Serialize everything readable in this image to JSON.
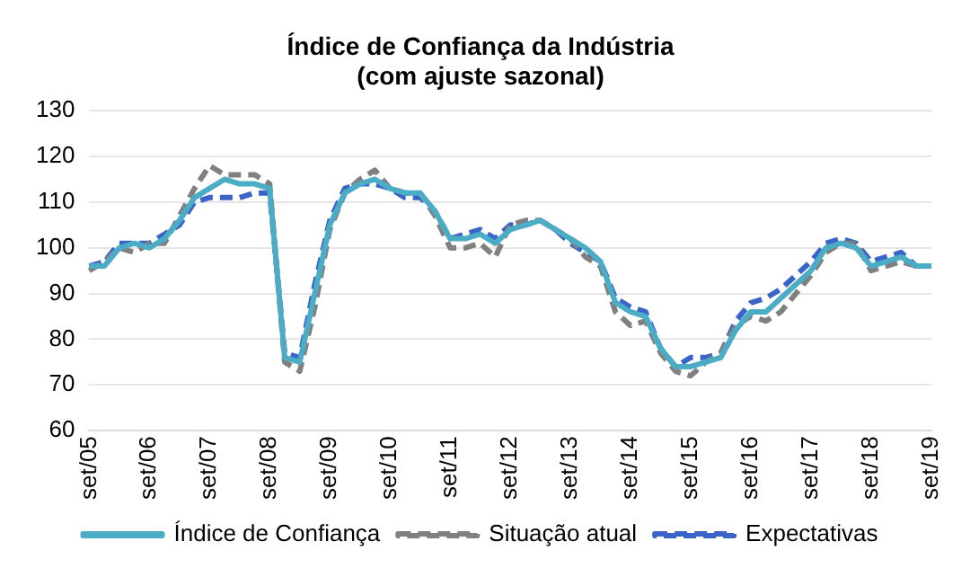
{
  "chart_data": {
    "type": "line",
    "title": "Índice de Confiança da Indústria\n(com ajuste sazonal)",
    "categories": [
      "set/05",
      null,
      null,
      null,
      "set/06",
      null,
      null,
      null,
      "set/07",
      null,
      null,
      null,
      "set/08",
      null,
      null,
      null,
      "set/09",
      null,
      null,
      null,
      "set/10",
      null,
      null,
      null,
      "set/11",
      null,
      null,
      null,
      "set/12",
      null,
      null,
      null,
      "set/13",
      null,
      null,
      null,
      "set/14",
      null,
      null,
      null,
      "set/15",
      null,
      null,
      null,
      "set/16",
      null,
      null,
      null,
      "set/17",
      null,
      null,
      null,
      "set/18",
      null,
      null,
      null,
      "set/19"
    ],
    "series": [
      {
        "name": "Índice de Confiança",
        "color": "#4bacc6",
        "line_style": "solid",
        "values": [
          96,
          96,
          100,
          101,
          100,
          102,
          106,
          111,
          113,
          115,
          114,
          114,
          113,
          76,
          75,
          90,
          105,
          112,
          114,
          115,
          113,
          112,
          112,
          108,
          102,
          102,
          103,
          101,
          104,
          105,
          106,
          104,
          102,
          100,
          97,
          88,
          86,
          85,
          78,
          74,
          74,
          75,
          76,
          82,
          86,
          86,
          89,
          92,
          95,
          100,
          101,
          100,
          96,
          97,
          98,
          96,
          96
        ]
      },
      {
        "name": "Situação atual",
        "color": "#808080",
        "line_style": "dashed",
        "values": [
          95,
          97,
          100,
          99,
          101,
          101,
          107,
          113,
          118,
          116,
          116,
          116,
          114,
          75,
          73,
          87,
          104,
          112,
          115,
          117,
          113,
          112,
          112,
          107,
          100,
          100,
          101,
          98,
          105,
          106,
          106,
          104,
          102,
          98,
          96,
          86,
          83,
          84,
          77,
          73,
          72,
          75,
          77,
          83,
          85,
          84,
          86,
          90,
          94,
          99,
          101,
          101,
          95,
          96,
          97,
          96,
          96
        ]
      },
      {
        "name": "Expectativas",
        "color": "#3b64c8",
        "line_style": "dashed",
        "values": [
          96,
          97,
          101,
          101,
          101,
          103,
          105,
          110,
          111,
          111,
          111,
          112,
          112,
          77,
          76,
          92,
          106,
          113,
          114,
          114,
          113,
          111,
          111,
          108,
          102,
          103,
          104,
          102,
          105,
          105,
          106,
          104,
          101,
          99,
          97,
          89,
          87,
          86,
          78,
          74,
          76,
          76,
          77,
          84,
          88,
          89,
          91,
          94,
          97,
          101,
          102,
          101,
          97,
          98,
          99,
          96,
          96
        ]
      }
    ],
    "ylim": [
      60,
      130
    ],
    "yticks": [
      60,
      70,
      80,
      90,
      100,
      110,
      120,
      130
    ],
    "grid": "y",
    "legend": "bottom",
    "marker": "none"
  }
}
